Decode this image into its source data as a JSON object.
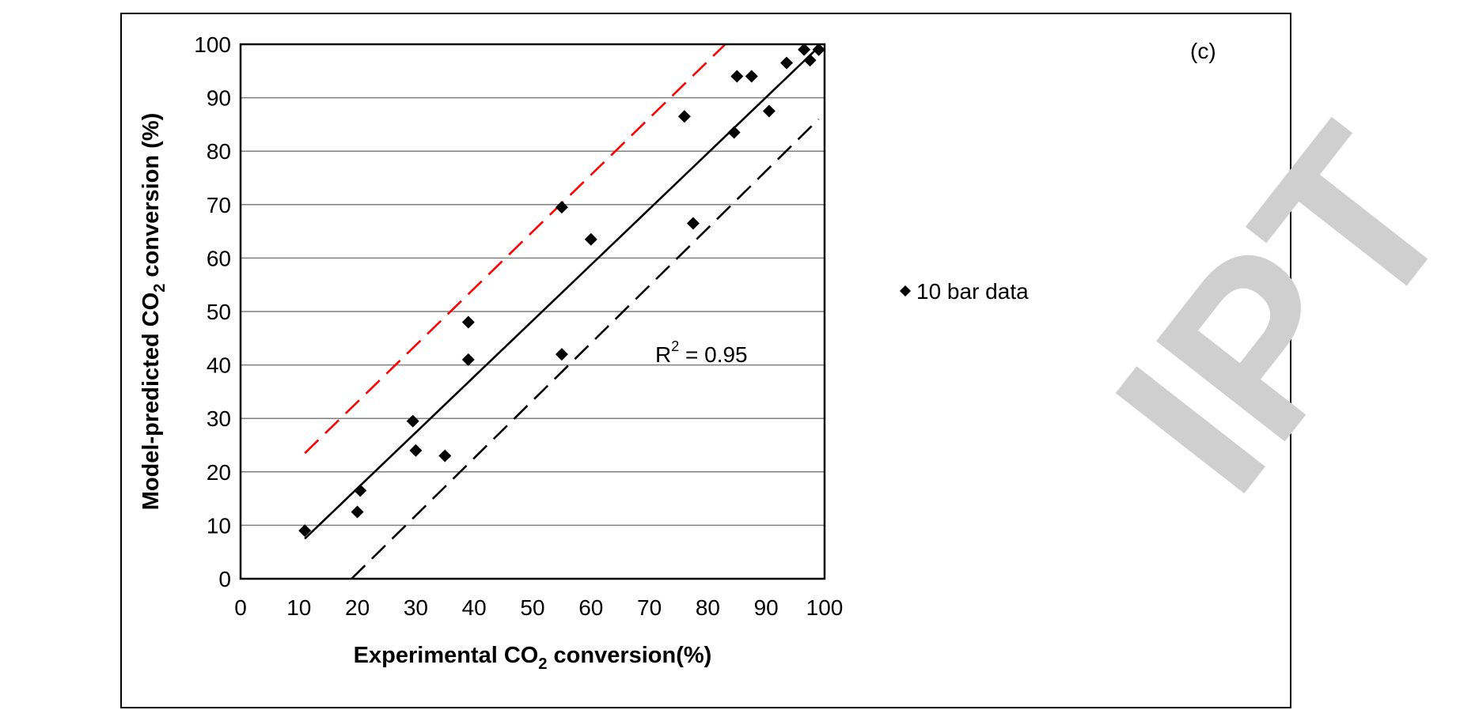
{
  "chart_data": {
    "type": "scatter",
    "panel_label": "(c)",
    "xlabel": {
      "before": "Experimental CO",
      "sub": "2",
      "after": " conversion(%)"
    },
    "ylabel": {
      "before": "Model-predicted CO",
      "sub": "2",
      "after": " conversion (%)"
    },
    "xlim": [
      0,
      100
    ],
    "ylim": [
      0,
      100
    ],
    "xticks": [
      0,
      10,
      20,
      30,
      40,
      50,
      60,
      70,
      80,
      90,
      100
    ],
    "yticks": [
      0,
      10,
      20,
      30,
      40,
      50,
      60,
      70,
      80,
      90,
      100
    ],
    "grid": "horizontal",
    "legend_position": "right",
    "series": [
      {
        "name": "10 bar data",
        "marker": "diamond",
        "color": "#000000",
        "points": [
          [
            11,
            9
          ],
          [
            20,
            12.5
          ],
          [
            20.5,
            16.5
          ],
          [
            29.5,
            29.5
          ],
          [
            30,
            24
          ],
          [
            35,
            23
          ],
          [
            39,
            48
          ],
          [
            39,
            41
          ],
          [
            55,
            69.5
          ],
          [
            55,
            42
          ],
          [
            60,
            63.5
          ],
          [
            76,
            86.5
          ],
          [
            77.5,
            66.5
          ],
          [
            84.5,
            83.5
          ],
          [
            85,
            94
          ],
          [
            87.5,
            94
          ],
          [
            90.5,
            87.5
          ],
          [
            93.5,
            96.5
          ],
          [
            96.5,
            99
          ],
          [
            97.5,
            97
          ],
          [
            99,
            99
          ]
        ]
      }
    ],
    "lines": [
      {
        "kind": "fit",
        "style": "solid",
        "color": "#000000",
        "from": [
          11,
          7.5
        ],
        "to": [
          99,
          99.5
        ]
      },
      {
        "kind": "upper-bound",
        "style": "dashed",
        "color": "#ff0000",
        "from": [
          11,
          23.5
        ],
        "to": [
          83,
          100
        ]
      },
      {
        "kind": "lower-bound",
        "style": "dashed",
        "color": "#000000",
        "from": [
          19,
          0
        ],
        "to": [
          99,
          86
        ]
      }
    ],
    "annotation": {
      "base": "R",
      "sup": "2",
      "rest": " = 0.95",
      "x": 71,
      "y": 40.5
    }
  },
  "watermark": {
    "text": "ACCEPTED MANUSCRIPT",
    "visible_fragment": "IPT",
    "color": "#cfcfcf"
  }
}
